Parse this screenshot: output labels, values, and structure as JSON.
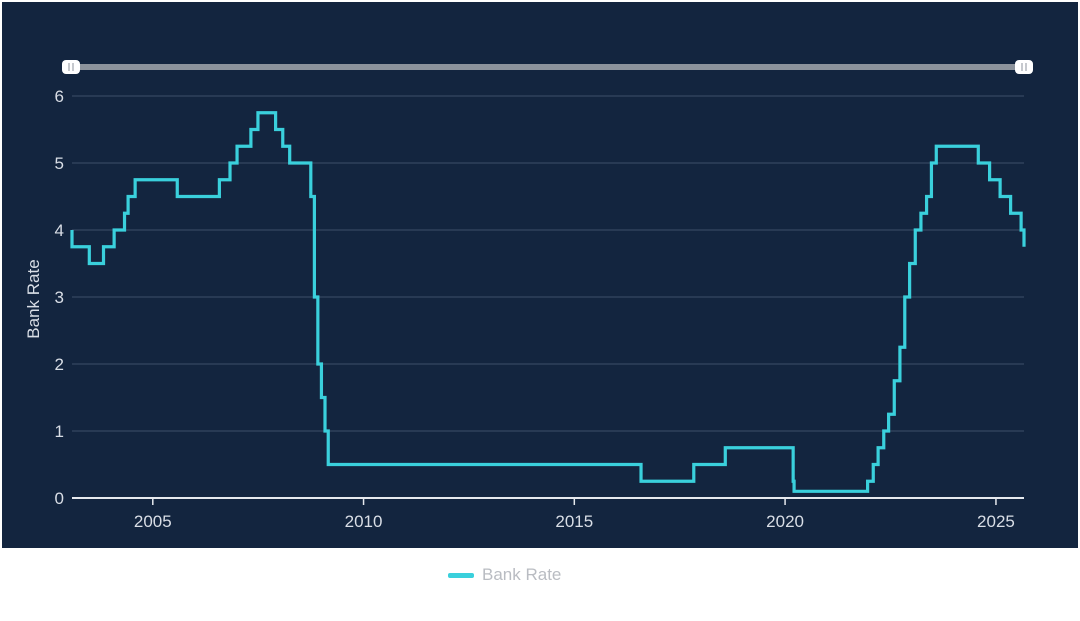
{
  "colors": {
    "background": "#13253f",
    "line": "#3ad0dc",
    "grid": "#3d4e68",
    "axis": "#e6e9ee",
    "navigator": "#8c939c",
    "handle": "#ffffff"
  },
  "legend": {
    "label": "Bank Rate"
  },
  "chart_data": {
    "type": "line",
    "line_shape": "step",
    "ylabel": "Bank Rate",
    "xlabel": "",
    "title": "",
    "ylim": [
      0,
      6
    ],
    "xlim": [
      "2003-02-01",
      "2025-09-01"
    ],
    "y_ticks": [
      0,
      1,
      2,
      3,
      4,
      5,
      6
    ],
    "x_ticks": [
      "2005",
      "2010",
      "2015",
      "2020",
      "2025"
    ],
    "grid": true,
    "legend_position": "bottom-center",
    "series": [
      {
        "name": "Bank Rate",
        "x": [
          "2003-02-01",
          "2003-07-01",
          "2003-11-01",
          "2004-02-01",
          "2004-05-01",
          "2004-06-01",
          "2004-08-01",
          "2005-08-01",
          "2006-08-01",
          "2006-11-01",
          "2007-01-01",
          "2007-05-01",
          "2007-07-01",
          "2007-12-01",
          "2008-02-01",
          "2008-04-01",
          "2008-10-01",
          "2008-11-01",
          "2008-12-01",
          "2009-01-01",
          "2009-02-01",
          "2009-03-01",
          "2016-08-01",
          "2017-11-01",
          "2018-08-01",
          "2020-03-11",
          "2020-03-19",
          "2021-12-16",
          "2022-02-03",
          "2022-03-17",
          "2022-05-05",
          "2022-06-16",
          "2022-08-04",
          "2022-09-22",
          "2022-11-03",
          "2022-12-15",
          "2023-02-02",
          "2023-03-23",
          "2023-05-11",
          "2023-06-22",
          "2023-08-03",
          "2024-08-01",
          "2024-11-07",
          "2025-02-06",
          "2025-05-08",
          "2025-08-07",
          "2025-09-01"
        ],
        "values": [
          3.75,
          3.5,
          3.75,
          4.0,
          4.25,
          4.5,
          4.75,
          4.5,
          4.75,
          5.0,
          5.25,
          5.5,
          5.75,
          5.5,
          5.25,
          5.0,
          4.5,
          3.0,
          2.0,
          1.5,
          1.0,
          0.5,
          0.25,
          0.5,
          0.75,
          0.25,
          0.1,
          0.25,
          0.5,
          0.75,
          1.0,
          1.25,
          1.75,
          2.25,
          3.0,
          3.5,
          4.0,
          4.25,
          4.5,
          5.0,
          5.25,
          5.0,
          4.75,
          4.5,
          4.25,
          4.0,
          3.75
        ]
      }
    ]
  }
}
